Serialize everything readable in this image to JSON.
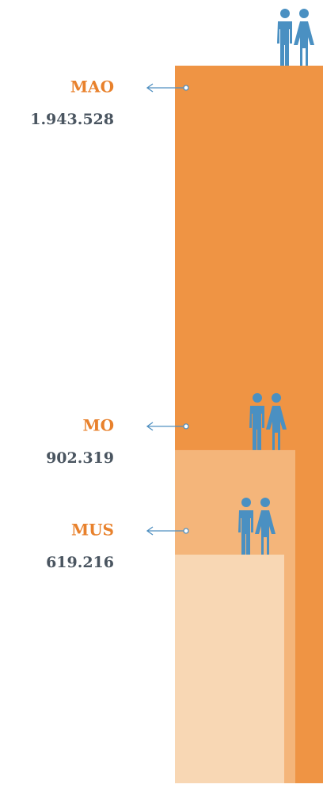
{
  "chart_data": {
    "type": "bar",
    "categories": [
      "MAO",
      "MO",
      "MUS"
    ],
    "values": [
      1943528,
      902319,
      619216
    ],
    "value_labels": [
      "1.943.528",
      "902.319",
      "619.216"
    ],
    "colors": [
      "#ef9444",
      "#f4b57a",
      "#f8d7b4"
    ]
  }
}
